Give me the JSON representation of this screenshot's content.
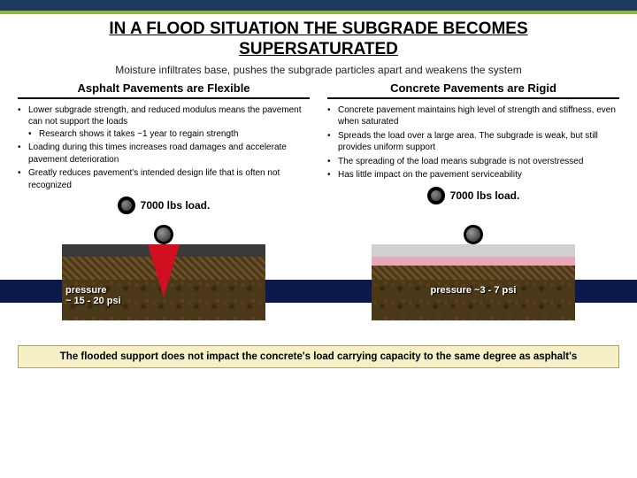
{
  "title": "IN A FLOOD SITUATION THE SUBGRADE BECOMES SUPERSATURATED",
  "subtitle": "Moisture infiltrates base, pushes the subgrade particles apart and weakens the system",
  "colors": {
    "topbar": "#1e3a5f",
    "accent": "#8ab547",
    "stripe": "#0b1a4a",
    "asphalt": "#3a3a3a",
    "concrete": "#d0d0d0",
    "pink": "#e8a8b8",
    "base": "#6b5028",
    "subgrade": "#4a3818",
    "crack": "#d01020",
    "footer_bg": "#f5f0c8"
  },
  "left": {
    "heading": "Asphalt Pavements are Flexible",
    "bullets": [
      "Lower subgrade strength, and reduced modulus means the pavement can not support the loads",
      "Research shows it takes ~1 year to regain strength",
      "Loading during this times increases road damages and accelerate pavement deterioration",
      "Greatly reduces pavement's intended design life that is often not recognized"
    ],
    "load_label": "7000 lbs load.",
    "pressure_label": "pressure ~ 15 - 20 psi"
  },
  "right": {
    "heading": "Concrete Pavements are Rigid",
    "bullets": [
      "Concrete pavement maintains high level of strength and stiffness, even when saturated",
      "Spreads the load over a large area. The subgrade is weak, but still provides uniform support",
      "The spreading of the load means subgrade is not overstressed",
      "Has little impact on the pavement serviceability"
    ],
    "load_label": "7000 lbs load.",
    "pressure_label": "pressure ~3 - 7 psi"
  },
  "footer": "The flooded support does not impact the concrete's load carrying capacity to the same degree as asphalt's"
}
